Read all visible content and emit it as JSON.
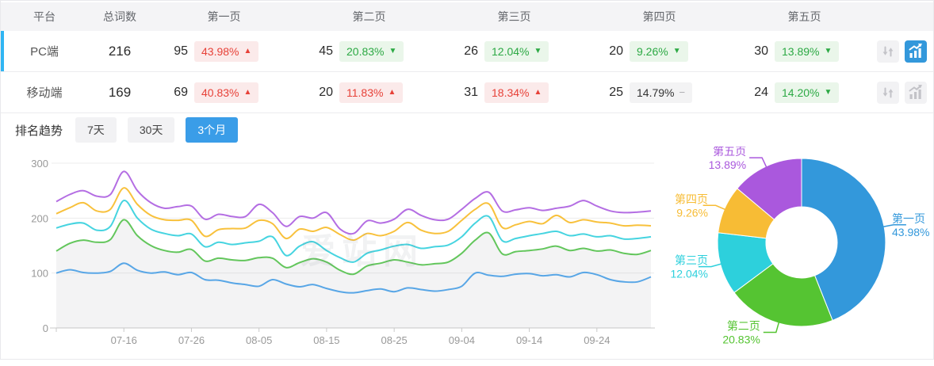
{
  "table": {
    "headers": {
      "platform": "平台",
      "total": "总词数",
      "pages": [
        "第一页",
        "第二页",
        "第三页",
        "第四页",
        "第五页"
      ]
    },
    "rows": [
      {
        "platform": "PC端",
        "total": "216",
        "active": true,
        "pages": [
          {
            "count": "95",
            "pct": "43.98%",
            "trend": "up",
            "tone": "red"
          },
          {
            "count": "45",
            "pct": "20.83%",
            "trend": "down",
            "tone": "green"
          },
          {
            "count": "26",
            "pct": "12.04%",
            "trend": "down",
            "tone": "green"
          },
          {
            "count": "20",
            "pct": "9.26%",
            "trend": "down",
            "tone": "green"
          },
          {
            "count": "30",
            "pct": "13.89%",
            "trend": "down",
            "tone": "green"
          }
        ],
        "actions": {
          "sort": "inactive",
          "chart": "active"
        }
      },
      {
        "platform": "移动端",
        "total": "169",
        "active": false,
        "pages": [
          {
            "count": "69",
            "pct": "40.83%",
            "trend": "up",
            "tone": "red"
          },
          {
            "count": "20",
            "pct": "11.83%",
            "trend": "up",
            "tone": "red"
          },
          {
            "count": "31",
            "pct": "18.34%",
            "trend": "up",
            "tone": "red"
          },
          {
            "count": "25",
            "pct": "14.79%",
            "trend": "flat",
            "tone": "gray"
          },
          {
            "count": "24",
            "pct": "14.20%",
            "trend": "down",
            "tone": "green"
          }
        ],
        "actions": {
          "sort": "inactive",
          "chart": "inactive"
        }
      }
    ]
  },
  "trend": {
    "label": "排名趋势",
    "tabs": [
      {
        "label": "7天",
        "active": false
      },
      {
        "label": "30天",
        "active": false
      },
      {
        "label": "3个月",
        "active": true
      }
    ]
  },
  "watermark": "爱站网",
  "colors": {
    "accent_blue": "#3398db",
    "row_indicator": "#2fb5f3",
    "tab_active_bg": "#3a9de8",
    "badge_red_text": "#e74138",
    "badge_red_bg": "#fbeaea",
    "badge_green_text": "#2ca944",
    "badge_green_bg": "#eaf6ea",
    "badge_gray_text": "#333333",
    "badge_gray_bg": "#f3f3f4",
    "axis_text": "#999999",
    "gridline": "#ececec",
    "area_fill": "rgba(160,160,170,0.13)"
  },
  "chart_data": [
    {
      "type": "line",
      "title": "",
      "xlabel": "",
      "ylabel": "",
      "ylim": [
        0,
        300
      ],
      "yticks": [
        0,
        100,
        200,
        300
      ],
      "grid": true,
      "legend": "none",
      "x_tick_labels": [
        "07-16",
        "07-26",
        "08-05",
        "08-15",
        "08-25",
        "09-04",
        "09-14",
        "09-24"
      ],
      "tick_indices": [
        5,
        10,
        15,
        20,
        25,
        30,
        35,
        40
      ],
      "points": 45,
      "series": [
        {
          "name": "blue",
          "color": "#58a6e6",
          "area": false,
          "values": [
            100,
            106,
            101,
            100,
            103,
            118,
            105,
            100,
            102,
            97,
            101,
            88,
            87,
            82,
            79,
            76,
            88,
            80,
            75,
            79,
            72,
            66,
            64,
            68,
            71,
            66,
            73,
            70,
            67,
            70,
            76,
            100,
            96,
            94,
            98,
            99,
            95,
            97,
            93,
            101,
            97,
            88,
            84,
            84,
            93
          ]
        },
        {
          "name": "green",
          "color": "#63c65c",
          "area": true,
          "values": [
            140,
            154,
            160,
            156,
            161,
            197,
            168,
            150,
            141,
            138,
            143,
            122,
            127,
            124,
            123,
            128,
            127,
            110,
            119,
            126,
            120,
            105,
            98,
            113,
            118,
            124,
            120,
            115,
            117,
            120,
            136,
            160,
            173,
            135,
            139,
            141,
            144,
            149,
            141,
            145,
            140,
            142,
            136,
            134,
            141
          ]
        },
        {
          "name": "cyan",
          "color": "#46d4e0",
          "area": false,
          "values": [
            182,
            189,
            191,
            178,
            185,
            232,
            200,
            180,
            172,
            168,
            171,
            148,
            156,
            152,
            155,
            158,
            166,
            132,
            149,
            157,
            141,
            128,
            120,
            136,
            142,
            149,
            152,
            145,
            148,
            151,
            166,
            191,
            203,
            159,
            163,
            168,
            172,
            176,
            168,
            171,
            166,
            168,
            162,
            163,
            166
          ]
        },
        {
          "name": "yellow",
          "color": "#f8c13c",
          "area": false,
          "values": [
            208,
            219,
            228,
            213,
            216,
            255,
            225,
            205,
            197,
            196,
            196,
            167,
            179,
            181,
            182,
            196,
            190,
            163,
            180,
            176,
            183,
            170,
            160,
            172,
            168,
            176,
            192,
            178,
            172,
            176,
            196,
            216,
            226,
            183,
            188,
            194,
            190,
            205,
            192,
            197,
            193,
            191,
            186,
            187,
            186
          ]
        },
        {
          "name": "purple",
          "color": "#b46ee3",
          "area": false,
          "values": [
            230,
            243,
            250,
            240,
            243,
            285,
            250,
            228,
            218,
            221,
            222,
            198,
            207,
            203,
            203,
            225,
            210,
            185,
            203,
            200,
            210,
            180,
            172,
            195,
            191,
            198,
            216,
            205,
            197,
            198,
            216,
            236,
            247,
            213,
            215,
            219,
            214,
            218,
            222,
            232,
            222,
            213,
            210,
            211,
            213
          ]
        }
      ]
    },
    {
      "type": "pie",
      "subtype": "donut",
      "start_angle": "top",
      "clockwise": true,
      "inner_radius_ratio": 0.42,
      "labels": [
        "第一页",
        "第二页",
        "第三页",
        "第四页",
        "第五页"
      ],
      "values": [
        43.98,
        20.83,
        12.04,
        9.26,
        13.89
      ],
      "value_labels": [
        "43.98%",
        "20.83%",
        "12.04%",
        "9.26%",
        "13.89%"
      ],
      "colors": [
        "#3398db",
        "#55c432",
        "#2dd0dc",
        "#f7bc35",
        "#aa58dd"
      ],
      "legend": "none"
    }
  ]
}
